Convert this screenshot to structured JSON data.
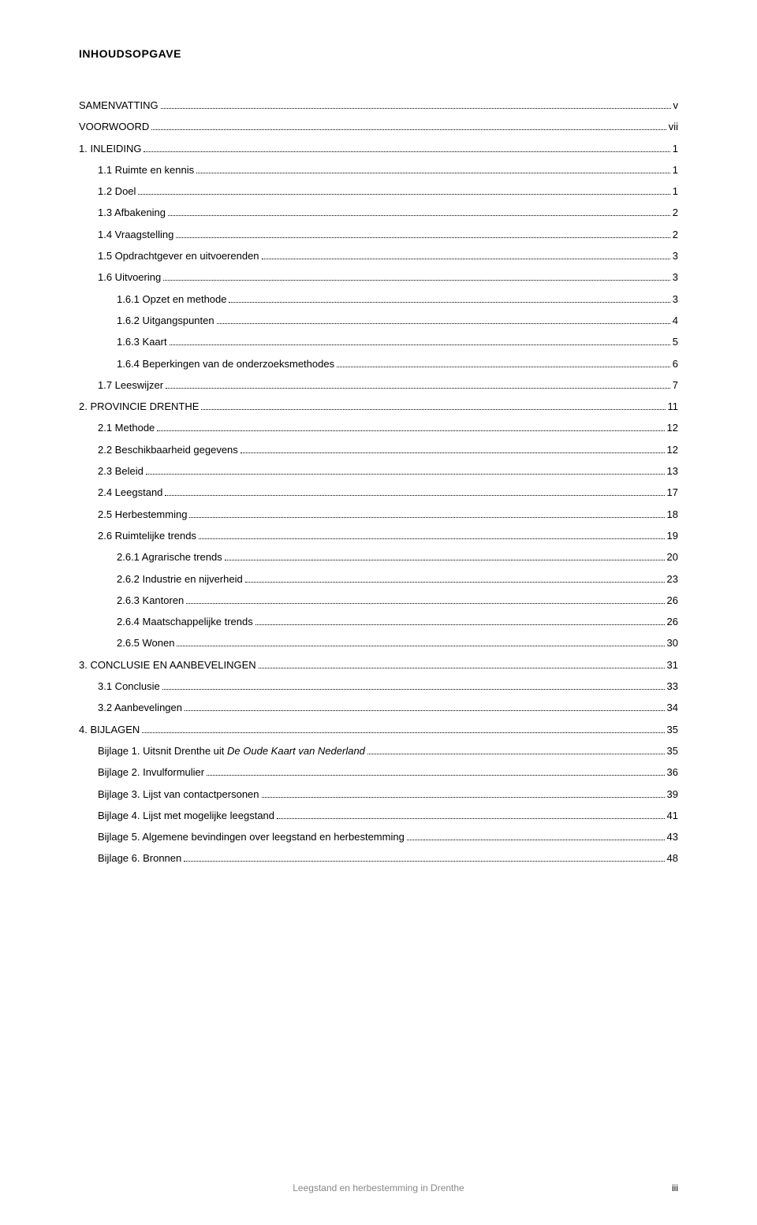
{
  "title": "INHOUDSOPGAVE",
  "footer_text": "Leegstand en herbestemming in Drenthe",
  "footer_page": "iii",
  "entries": [
    {
      "label": "SAMENVATTING",
      "page": "v",
      "indent": 0,
      "spaced": false
    },
    {
      "label": "VOORWOORD",
      "page": "vii",
      "indent": 0,
      "spaced": false
    },
    {
      "label": "1. INLEIDING",
      "page": "1",
      "indent": 0,
      "spaced": false
    },
    {
      "label": "1.1 Ruimte en kennis",
      "page": "1",
      "indent": 1,
      "spaced": false
    },
    {
      "label": "1.2 Doel",
      "page": "1",
      "indent": 1,
      "spaced": false
    },
    {
      "label": "1.3 Afbakening",
      "page": "2",
      "indent": 1,
      "spaced": false
    },
    {
      "label": "1.4 Vraagstelling",
      "page": "2",
      "indent": 1,
      "spaced": false
    },
    {
      "label": "1.5 Opdrachtgever en uitvoerenden",
      "page": "3",
      "indent": 1,
      "spaced": false
    },
    {
      "label": "1.6 Uitvoering",
      "page": "3",
      "indent": 1,
      "spaced": false
    },
    {
      "label": "1.6.1 Opzet en methode",
      "page": "3",
      "indent": 2,
      "spaced": false
    },
    {
      "label": "1.6.2 Uitgangspunten",
      "page": "4",
      "indent": 2,
      "spaced": false
    },
    {
      "label": "1.6.3 Kaart",
      "page": "5",
      "indent": 2,
      "spaced": false
    },
    {
      "label": "1.6.4 Beperkingen van de onderzoeksmethodes",
      "page": "6",
      "indent": 2,
      "spaced": false
    },
    {
      "label": "1.7  Leeswijzer",
      "page": "7",
      "indent": 1,
      "spaced": false
    },
    {
      "label": "2. PROVINCIE DRENTHE",
      "page": "11",
      "indent": 0,
      "spaced": false
    },
    {
      "label": "2.1 Methode",
      "page": "12",
      "indent": 1,
      "spaced": false
    },
    {
      "label": "2.2 Beschikbaarheid gegevens",
      "page": "12",
      "indent": 1,
      "spaced": false
    },
    {
      "label": "2.3 Beleid",
      "page": "13",
      "indent": 1,
      "spaced": false
    },
    {
      "label": "2.4 Leegstand",
      "page": "17",
      "indent": 1,
      "spaced": false
    },
    {
      "label": "2.5 Herbestemming",
      "page": "18",
      "indent": 1,
      "spaced": false
    },
    {
      "label": "2.6 Ruimtelijke trends",
      "page": "19",
      "indent": 1,
      "spaced": false
    },
    {
      "label": "2.6.1 Agrarische trends",
      "page": "20",
      "indent": 2,
      "spaced": false
    },
    {
      "label": "2.6.2 Industrie en nijverheid",
      "page": "23",
      "indent": 2,
      "spaced": false
    },
    {
      "label": "2.6.3 Kantoren",
      "page": "26",
      "indent": 2,
      "spaced": false
    },
    {
      "label": "2.6.4 Maatschappelijke trends",
      "page": "26",
      "indent": 2,
      "spaced": false
    },
    {
      "label": "2.6.5  Wonen",
      "page": "30",
      "indent": 2,
      "spaced": false
    },
    {
      "label": "3. CONCLUSIE EN AANBEVELINGEN",
      "page": "31",
      "indent": 0,
      "spaced": false
    },
    {
      "label": "3.1 Conclusie",
      "page": "33",
      "indent": 1,
      "spaced": false
    },
    {
      "label": "3.2 Aanbevelingen",
      "page": "34",
      "indent": 1,
      "spaced": false
    },
    {
      "label": "4. BIJLAGEN",
      "page": "35",
      "indent": 0,
      "spaced": false
    },
    {
      "label_prefix": "Bijlage 1. Uitsnit Drenthe uit ",
      "label_italic": "De Oude Kaart van Nederland",
      "page": "35",
      "indent": 1,
      "spaced": false
    },
    {
      "label": "Bijlage 2. Invulformulier",
      "page": "36",
      "indent": 1,
      "spaced": false
    },
    {
      "label": "Bijlage 3. Lijst van contactpersonen",
      "page": "39",
      "indent": 1,
      "spaced": false
    },
    {
      "label": "Bijlage 4. Lijst met mogelijke leegstand",
      "page": "41",
      "indent": 1,
      "spaced": false
    },
    {
      "label": "Bijlage 5. Algemene bevindingen over leegstand en herbestemming",
      "page": "43",
      "indent": 1,
      "spaced": false
    },
    {
      "label": "Bijlage 6. Bronnen",
      "page": "48",
      "indent": 1,
      "spaced": false
    }
  ]
}
